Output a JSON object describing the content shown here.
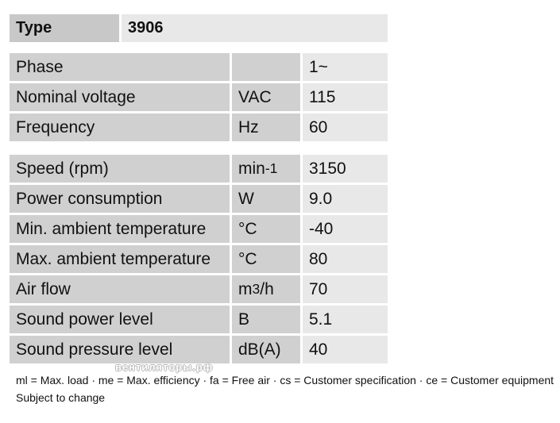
{
  "type_row": {
    "label": "Type",
    "value": "3906"
  },
  "electrical": [
    {
      "label": "Phase",
      "unit": "",
      "value": "1~"
    },
    {
      "label": "Nominal voltage",
      "unit": "VAC",
      "value": "115"
    },
    {
      "label": "Frequency",
      "unit": "Hz",
      "value": "60"
    }
  ],
  "performance": [
    {
      "label": "Speed (rpm)",
      "unit_base": "min",
      "unit_sup": "-1",
      "unit_tail": "",
      "value": "3150"
    },
    {
      "label": "Power consumption",
      "unit_base": "W",
      "unit_sup": "",
      "unit_tail": "",
      "value": "9.0"
    },
    {
      "label": "Min. ambient temperature",
      "unit_base": "°C",
      "unit_sup": "",
      "unit_tail": "",
      "value": "-40"
    },
    {
      "label": "Max. ambient temperature",
      "unit_base": "°C",
      "unit_sup": "",
      "unit_tail": "",
      "value": "80"
    },
    {
      "label": "Air flow",
      "unit_base": "m",
      "unit_sup": "3",
      "unit_tail": "/h",
      "value": "70"
    },
    {
      "label": "Sound power level",
      "unit_base": "B",
      "unit_sup": "",
      "unit_tail": "",
      "value": "5.1"
    },
    {
      "label": "Sound pressure level",
      "unit_base": "dB(A)",
      "unit_sup": "",
      "unit_tail": "",
      "value": "40"
    }
  ],
  "footnotes": {
    "legend": "ml = Max. load · me = Max. efficiency · fa = Free air · cs = Customer specification · ce = Customer equipment",
    "subject_to_change": "Subject to change"
  },
  "watermark_text": "вентиляторы.рф"
}
